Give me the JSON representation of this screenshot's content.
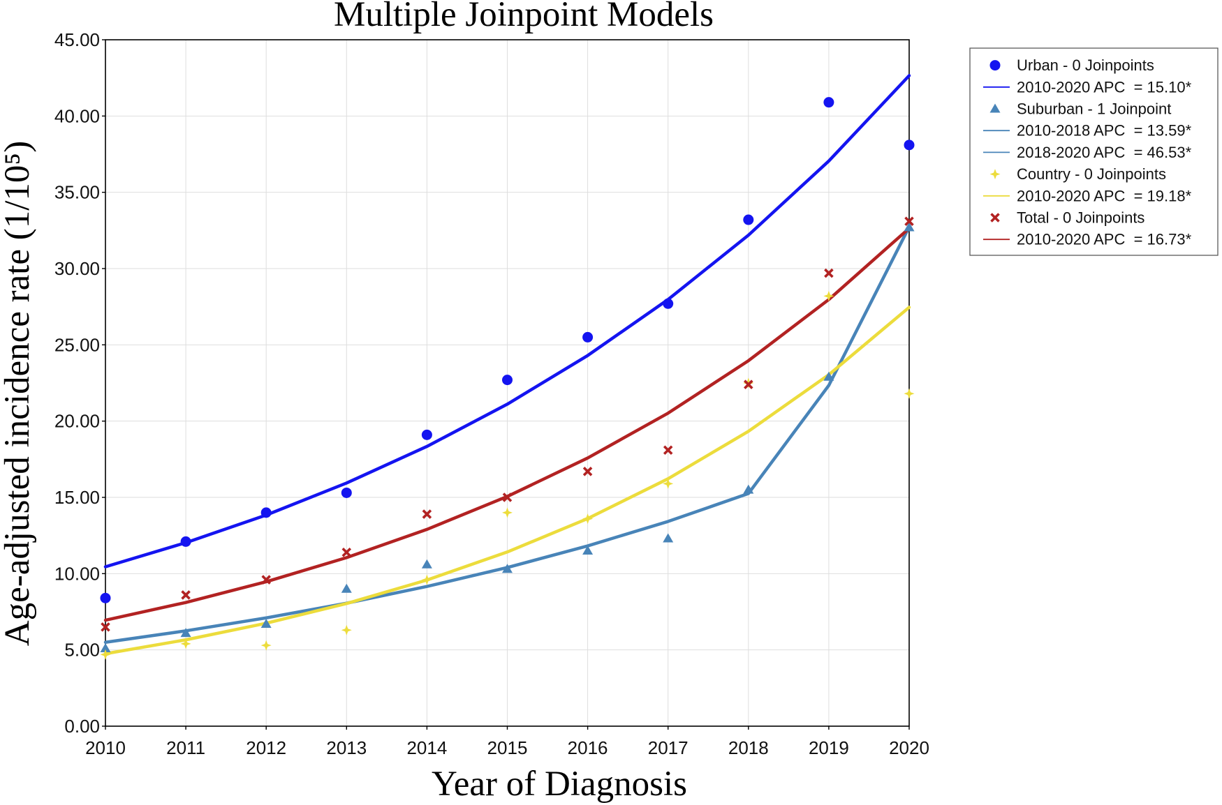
{
  "chart_data": {
    "type": "line",
    "title": "Multiple Joinpoint Models",
    "xlabel": "Year of Diagnosis",
    "ylabel": "Age-adjusted incidence rate (1/10⁵)",
    "x": [
      2010,
      2011,
      2012,
      2013,
      2014,
      2015,
      2016,
      2017,
      2018,
      2019,
      2020
    ],
    "x_tick_labels": [
      "2010",
      "2011",
      "2012",
      "2013",
      "2014",
      "2015",
      "2016",
      "2017",
      "2018",
      "2019",
      "2020"
    ],
    "xlim": [
      2010,
      2020
    ],
    "ylim": [
      0,
      45
    ],
    "y_ticks": [
      0,
      5,
      10,
      15,
      20,
      25,
      30,
      35,
      40,
      45
    ],
    "y_tick_labels": [
      "0.00",
      "5.00",
      "10.00",
      "15.00",
      "20.00",
      "25.00",
      "30.00",
      "35.00",
      "40.00",
      "45.00"
    ],
    "grid": true,
    "legend_position": "right",
    "series": [
      {
        "name": "Urban",
        "color": "#1414f0",
        "marker": "circle",
        "observed": [
          8.4,
          12.1,
          14.0,
          15.3,
          19.1,
          22.7,
          25.5,
          27.7,
          33.2,
          40.9,
          38.1
        ],
        "fitted": [
          10.45,
          12.03,
          13.84,
          15.94,
          18.34,
          21.11,
          24.3,
          27.97,
          32.19,
          37.05,
          42.65
        ]
      },
      {
        "name": "Suburban",
        "color": "#4884b8",
        "marker": "triangle",
        "observed": [
          5.1,
          6.1,
          6.7,
          9.0,
          10.6,
          10.3,
          11.5,
          12.3,
          15.5,
          22.9,
          32.7
        ],
        "fitted": [
          5.5,
          6.25,
          7.1,
          8.06,
          9.16,
          10.4,
          11.82,
          13.42,
          15.25,
          22.34,
          32.73
        ]
      },
      {
        "name": "Country",
        "color": "#ecdc3c",
        "marker": "star",
        "observed": [
          4.7,
          5.4,
          5.3,
          6.3,
          9.6,
          14.0,
          13.6,
          15.9,
          22.5,
          28.2,
          21.8
        ],
        "fitted": [
          4.75,
          5.66,
          6.75,
          8.04,
          9.58,
          11.42,
          13.61,
          16.22,
          19.33,
          23.04,
          27.46
        ]
      },
      {
        "name": "Total",
        "color": "#b22222",
        "marker": "cross",
        "observed": [
          6.5,
          8.6,
          9.6,
          11.4,
          13.9,
          15.0,
          16.7,
          18.1,
          22.4,
          29.7,
          33.1
        ],
        "fitted": [
          6.95,
          8.11,
          9.47,
          11.05,
          12.9,
          15.06,
          17.58,
          20.52,
          23.96,
          27.97,
          32.64
        ]
      }
    ],
    "legend": [
      {
        "line": false,
        "series": 0,
        "label": "Urban - 0 Joinpoints"
      },
      {
        "line": true,
        "series": 0,
        "label": "2010-2020 APC  = 15.10*"
      },
      {
        "line": false,
        "series": 1,
        "label": "Suburban - 1 Joinpoint"
      },
      {
        "line": true,
        "series": 1,
        "label": "2010-2018 APC  = 13.59*"
      },
      {
        "line": true,
        "series": 1,
        "label": "2018-2020 APC  = 46.53*"
      },
      {
        "line": false,
        "series": 2,
        "label": "Country - 0 Joinpoints"
      },
      {
        "line": true,
        "series": 2,
        "label": "2010-2020 APC  = 19.18*"
      },
      {
        "line": false,
        "series": 3,
        "label": "Total - 0 Joinpoints"
      },
      {
        "line": true,
        "series": 3,
        "label": "2010-2020 APC  = 16.73*"
      }
    ]
  }
}
